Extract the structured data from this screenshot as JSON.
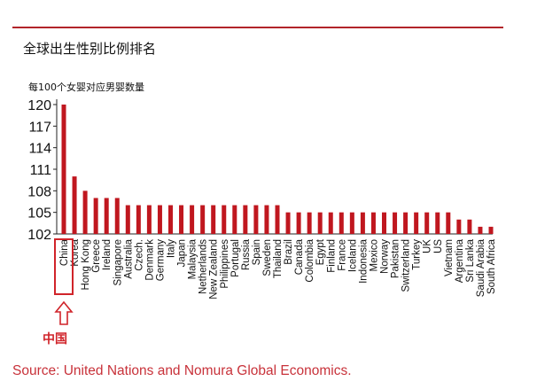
{
  "title": "全球出生性别比例排名",
  "source": "Source: United Nations and Nomura Global Economics.",
  "annotation": {
    "label": "中国",
    "highlighted_category": "China",
    "arrow": "up-arrow-icon",
    "color": "#d0242a"
  },
  "colors": {
    "bar": "#c0171f",
    "rule": "#b2242a",
    "source_text": "#c8323a"
  },
  "chart_data": {
    "type": "bar",
    "title": "全球出生性别比例排名",
    "ylabel": "每100个女婴对应男婴数量",
    "xlabel": "",
    "ylim": [
      102,
      120
    ],
    "yticks": [
      102,
      105,
      108,
      111,
      114,
      117,
      120
    ],
    "grid": false,
    "categories": [
      "China",
      "Korea",
      "Hong Kong",
      "Greece",
      "Ireland",
      "Singapore",
      "Australia",
      "Czech.",
      "Denmark",
      "Germany",
      "Italy",
      "Japan",
      "Malaysia",
      "Netherlands",
      "New Zealand",
      "Philippines",
      "Portugal",
      "Russia",
      "Spain",
      "Sweden",
      "Thailand",
      "Brazil",
      "Canada",
      "Colombia",
      "Egypt",
      "Finland",
      "France",
      "Iceland",
      "Indonesia",
      "Mexico",
      "Norway",
      "Pakistan",
      "Switzerland",
      "Turkey",
      "UK",
      "US",
      "Vietnam",
      "Argentina",
      "Sri Lanka",
      "Saudi Arabia",
      "South Africa"
    ],
    "values": [
      120,
      110,
      108,
      107,
      107,
      107,
      106,
      106,
      106,
      106,
      106,
      106,
      106,
      106,
      106,
      106,
      106,
      106,
      106,
      106,
      106,
      105,
      105,
      105,
      105,
      105,
      105,
      105,
      105,
      105,
      105,
      105,
      105,
      105,
      105,
      105,
      105,
      104,
      104,
      103,
      103
    ]
  }
}
